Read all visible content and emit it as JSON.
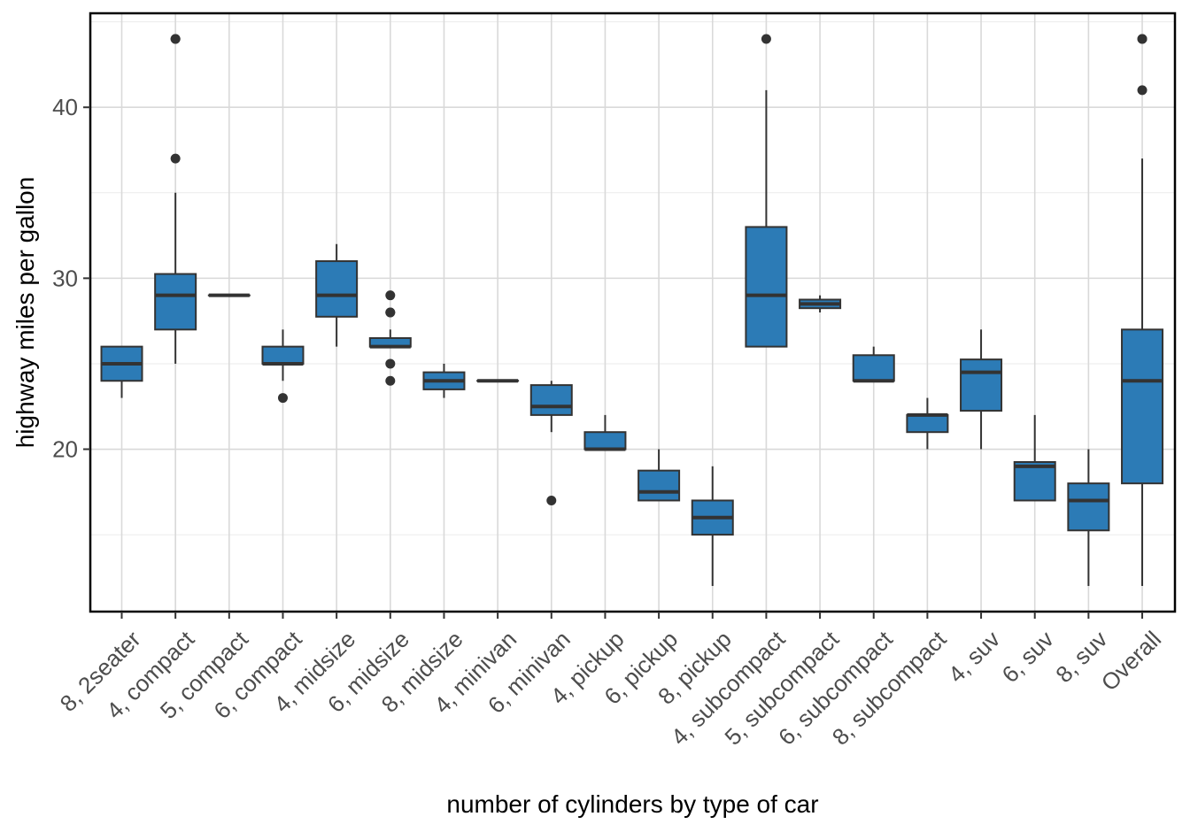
{
  "chart_data": {
    "type": "boxplot",
    "title": "",
    "xlabel": "number of cylinders by type of car",
    "ylabel": "highway miles per gallon",
    "ylim": [
      10.5,
      45.5
    ],
    "yticks": [
      20,
      30,
      40
    ],
    "grid": true,
    "fill_color": "#2c7bb6",
    "line_color": "#333333",
    "categories": [
      "8, 2seater",
      "4, compact",
      "5, compact",
      "6, compact",
      "4, midsize",
      "6, midsize",
      "8, midsize",
      "4, minivan",
      "6, minivan",
      "4, pickup",
      "6, pickup",
      "8, pickup",
      "4, subcompact",
      "5, subcompact",
      "6, subcompact",
      "8, subcompact",
      "4, suv",
      "6, suv",
      "8, suv",
      "Overall"
    ],
    "boxes": [
      {
        "min": 23,
        "q1": 24,
        "median": 25,
        "q3": 26,
        "max": 26,
        "outliers": []
      },
      {
        "min": 25,
        "q1": 27,
        "median": 29,
        "q3": 30.25,
        "max": 35,
        "outliers": [
          37,
          44,
          44
        ]
      },
      {
        "min": 29,
        "q1": 29,
        "median": 29,
        "q3": 29,
        "max": 29,
        "outliers": []
      },
      {
        "min": 24,
        "q1": 25,
        "median": 25,
        "q3": 26,
        "max": 27,
        "outliers": [
          23
        ]
      },
      {
        "min": 26,
        "q1": 27.75,
        "median": 29,
        "q3": 31,
        "max": 32,
        "outliers": []
      },
      {
        "min": 26,
        "q1": 26,
        "median": 26,
        "q3": 26.5,
        "max": 27,
        "outliers": [
          24,
          25,
          28,
          28,
          29
        ]
      },
      {
        "min": 23,
        "q1": 23.5,
        "median": 24,
        "q3": 24.5,
        "max": 25,
        "outliers": []
      },
      {
        "min": 24,
        "q1": 24,
        "median": 24,
        "q3": 24,
        "max": 24,
        "outliers": []
      },
      {
        "min": 21,
        "q1": 22,
        "median": 22.5,
        "q3": 23.75,
        "max": 24,
        "outliers": [
          17
        ]
      },
      {
        "min": 20,
        "q1": 20,
        "median": 20,
        "q3": 21,
        "max": 22,
        "outliers": []
      },
      {
        "min": 17,
        "q1": 17,
        "median": 17.5,
        "q3": 18.75,
        "max": 20,
        "outliers": []
      },
      {
        "min": 12,
        "q1": 15,
        "median": 16,
        "q3": 17,
        "max": 19,
        "outliers": []
      },
      {
        "min": 26,
        "q1": 26,
        "median": 29,
        "q3": 33,
        "max": 41,
        "outliers": [
          44
        ]
      },
      {
        "min": 28,
        "q1": 28.25,
        "median": 28.5,
        "q3": 28.75,
        "max": 29,
        "outliers": []
      },
      {
        "min": 24,
        "q1": 24,
        "median": 24,
        "q3": 25.5,
        "max": 26,
        "outliers": []
      },
      {
        "min": 20,
        "q1": 21,
        "median": 22,
        "q3": 22,
        "max": 23,
        "outliers": []
      },
      {
        "min": 20,
        "q1": 22.25,
        "median": 24.5,
        "q3": 25.25,
        "max": 27,
        "outliers": []
      },
      {
        "min": 17,
        "q1": 17,
        "median": 19,
        "q3": 19.25,
        "max": 22,
        "outliers": []
      },
      {
        "min": 12,
        "q1": 15.25,
        "median": 17,
        "q3": 18,
        "max": 20,
        "outliers": []
      },
      {
        "min": 12,
        "q1": 18,
        "median": 24,
        "q3": 27,
        "max": 37,
        "outliers": [
          41,
          44,
          44
        ]
      }
    ]
  }
}
